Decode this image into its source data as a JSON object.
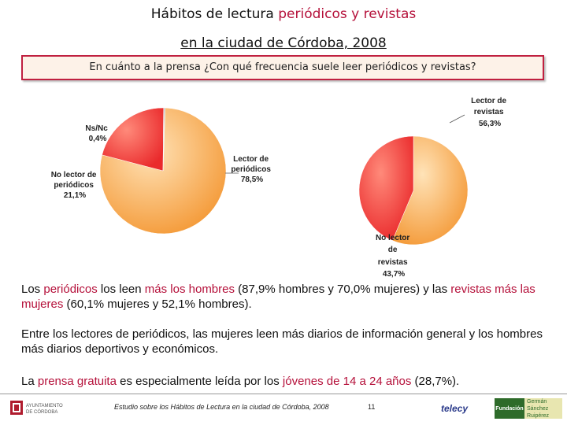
{
  "title": {
    "line1_a": "Hábitos de lectura ",
    "line1_b": "periódicos y revistas",
    "line2": "en la ciudad de Córdoba, 2008"
  },
  "question": "En cuánto a la prensa ¿Con qué frecuencia suele leer periódicos y revistas?",
  "chart_data": [
    {
      "type": "pie",
      "slices": [
        {
          "name": "Lector de periódicos",
          "value": 78.5,
          "value_label": "78,5%",
          "color": "#f7a54a"
        },
        {
          "name": "No lector de periódicos",
          "value": 21.1,
          "value_label": "21,1%",
          "color": "#f2393b"
        },
        {
          "name": "Ns/Nc",
          "value": 0.4,
          "value_label": "0,4%",
          "color": "#c8c8c8"
        }
      ]
    },
    {
      "type": "pie",
      "slices": [
        {
          "name": "Lector de revistas",
          "value": 56.3,
          "value_label": "56,3%",
          "color": "#f7a54a"
        },
        {
          "name": "No lector de revistas",
          "value": 43.7,
          "value_label": "43,7%",
          "color": "#f2393b"
        }
      ]
    }
  ],
  "labels": {
    "nsnc": [
      "Ns/Nc",
      "0,4%"
    ],
    "no_lector_periodicos": [
      "No lector de",
      "periódicos",
      "21,1%"
    ],
    "lector_periodicos": [
      "Lector de",
      "periódicos",
      "78,5%"
    ],
    "lector_revistas": [
      "Lector de",
      "revistas",
      "56,3%"
    ],
    "no_lector_revistas": [
      "No lector",
      "de",
      "revistas",
      "43,7%"
    ]
  },
  "paragraph1": {
    "a": "Los ",
    "b": "periódicos",
    "c": " los leen ",
    "d": "más los hombres",
    "e": " (87,9% hombres y 70,0% mujeres) y las ",
    "f": "revistas más las mujeres",
    "g": " (60,1% mujeres y 52,1% hombres)."
  },
  "paragraph2": "Entre los lectores de periódicos, las mujeres leen más diarios de  información general y los hombres más diarios deportivos y económicos.",
  "paragraph3": {
    "a": "La ",
    "b": "prensa gratuita",
    "c": " es especialmente leída por los ",
    "d": "jóvenes de 14 a 24 años",
    "e": " (28,7%)."
  },
  "footer": {
    "logo_left": [
      "AYUNTAMIENTO",
      "DE CÓRDOBA"
    ],
    "study": "Estudio sobre los Hábitos de Lectura en la ciudad de Córdoba, 2008",
    "page": "11",
    "telecy": "telecy",
    "fundacion_left": "Fundación",
    "fundacion_right": [
      "Germán",
      "Sánchez Ruipérez"
    ]
  },
  "colors": {
    "accent": "#b5103a",
    "orange": "#f7a54a",
    "red": "#f2393b"
  }
}
